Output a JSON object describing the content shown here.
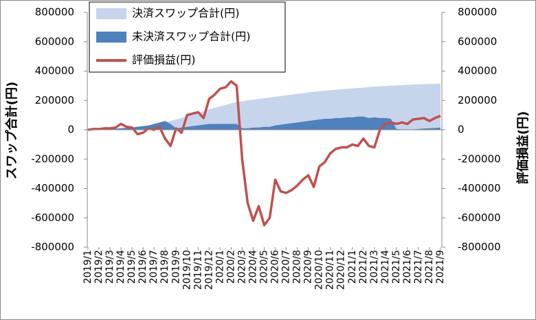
{
  "chart_data": {
    "type": "combo",
    "ylabel": "スワップ合計(円)",
    "y2label": "評価損益(円)",
    "categories": [
      "2019/1",
      null,
      "2019/2",
      null,
      "2019/3",
      null,
      "2019/4",
      null,
      "2019/5",
      null,
      "2019/6",
      null,
      "2019/7",
      null,
      "2019/8",
      null,
      "2019/9",
      null,
      "2019/10",
      null,
      "2019/11",
      null,
      "2019/12",
      null,
      "2020/1",
      null,
      "2020/2",
      null,
      "2020/3",
      null,
      "2020/4",
      null,
      "2020/5",
      null,
      "2020/6",
      null,
      "2020/7",
      null,
      "2020/8",
      null,
      "2020/9",
      null,
      "2020/10",
      null,
      "2020/11",
      null,
      "2020/12",
      null,
      "2021/1",
      null,
      "2021/2",
      null,
      "2021/3",
      null,
      "2021/4",
      null,
      "2021/5",
      null,
      "2021/6",
      null,
      "2021/7",
      null,
      "2021/8",
      null,
      "2021/9"
    ],
    "series": [
      {
        "name": "決済スワップ合計(円)",
        "type": "area",
        "color": "#c6d5ec",
        "values": [
          0,
          2000,
          4000,
          6000,
          8000,
          10000,
          12000,
          15000,
          18000,
          22000,
          26000,
          30000,
          35000,
          40000,
          50000,
          60000,
          70000,
          80000,
          95000,
          105000,
          115000,
          125000,
          140000,
          150000,
          160000,
          170000,
          180000,
          190000,
          195000,
          200000,
          205000,
          210000,
          215000,
          220000,
          225000,
          230000,
          235000,
          240000,
          245000,
          250000,
          255000,
          258000,
          262000,
          266000,
          270000,
          273000,
          276000,
          279000,
          282000,
          285000,
          288000,
          291000,
          294000,
          296000,
          298000,
          300000,
          302000,
          304000,
          306000,
          308000,
          310000,
          311000,
          312000,
          313000,
          315000
        ]
      },
      {
        "name": "未決済スワップ合計(円)",
        "type": "area",
        "color": "#4f81bd",
        "values": [
          0,
          0,
          2000,
          3000,
          5000,
          7000,
          10000,
          12000,
          15000,
          20000,
          25000,
          30000,
          40000,
          50000,
          60000,
          40000,
          10000,
          15000,
          20000,
          25000,
          30000,
          35000,
          40000,
          40000,
          40000,
          40000,
          40000,
          40000,
          10000,
          10000,
          15000,
          15000,
          20000,
          20000,
          30000,
          35000,
          40000,
          45000,
          50000,
          55000,
          60000,
          65000,
          70000,
          75000,
          75000,
          80000,
          80000,
          85000,
          85000,
          90000,
          90000,
          80000,
          85000,
          80000,
          80000,
          75000,
          5000,
          3000,
          3000,
          3000,
          5000,
          8000,
          10000,
          12000,
          15000
        ]
      },
      {
        "name": "評価損益(円)",
        "type": "line",
        "axis": "y2",
        "color": "#c0504d",
        "values": [
          0,
          5000,
          5000,
          10000,
          10000,
          15000,
          40000,
          20000,
          15000,
          -30000,
          -20000,
          10000,
          0,
          20000,
          -60000,
          -110000,
          10000,
          -20000,
          100000,
          110000,
          120000,
          80000,
          210000,
          240000,
          280000,
          290000,
          330000,
          300000,
          -200000,
          -500000,
          -620000,
          -520000,
          -650000,
          -600000,
          -340000,
          -420000,
          -430000,
          -410000,
          -380000,
          -340000,
          -310000,
          -390000,
          -250000,
          -220000,
          -160000,
          -130000,
          -120000,
          -120000,
          -100000,
          -110000,
          -60000,
          -110000,
          -120000,
          0,
          40000,
          50000,
          40000,
          50000,
          40000,
          70000,
          75000,
          80000,
          60000,
          80000,
          95000
        ]
      }
    ],
    "ylim": [
      -800000,
      800000
    ],
    "yticks": [
      -800000,
      -600000,
      -400000,
      -200000,
      0,
      200000,
      400000,
      600000,
      800000
    ],
    "y2lim": [
      -800000,
      800000
    ],
    "y2ticks": [
      -800000,
      -600000,
      -400000,
      -200000,
      0,
      200000,
      400000,
      600000,
      800000
    ],
    "legend": "top-left"
  }
}
